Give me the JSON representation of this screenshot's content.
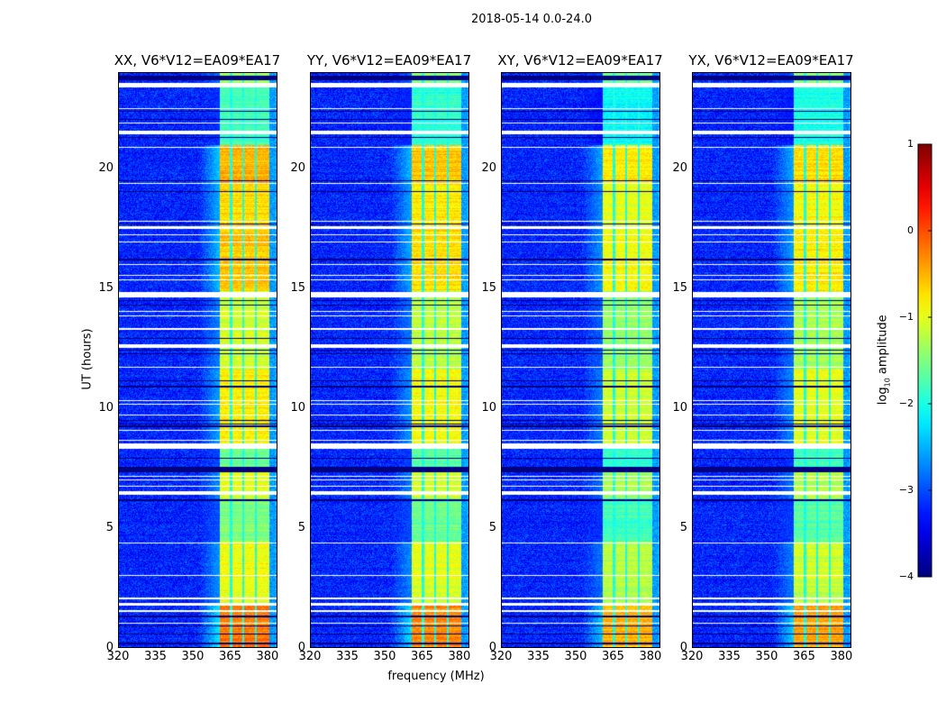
{
  "chart_data": {
    "type": "heatmap",
    "title": "2018-05-14 0.0-24.0",
    "xlabel": "frequency (MHz)",
    "ylabel": "UT (hours)",
    "xlim": [
      320,
      384
    ],
    "ylim": [
      0,
      24
    ],
    "xticks": [
      320,
      335,
      350,
      365,
      380
    ],
    "yticks": [
      0,
      5,
      10,
      15,
      20
    ],
    "panels": [
      {
        "title": "XX, V6*V12=EA09*EA17",
        "level_offset": 0.0
      },
      {
        "title": "YY, V6*V12=EA09*EA17",
        "level_offset": -0.1
      },
      {
        "title": "XY, V6*V12=EA09*EA17",
        "level_offset": -0.3
      },
      {
        "title": "YX, V6*V12=EA09*EA17",
        "level_offset": -0.2
      }
    ],
    "background_level": -3.2,
    "band": {
      "start_mhz": 361,
      "end_mhz": 381,
      "gaps_mhz": [
        365.5,
        370.5,
        375.5
      ],
      "gap_level": -2.0
    },
    "band_levels": [
      [
        0.0,
        1.85,
        -0.2
      ],
      [
        1.85,
        2.6,
        -1.0
      ],
      [
        2.6,
        4.4,
        -0.9
      ],
      [
        4.4,
        6.2,
        -1.5
      ],
      [
        6.2,
        7.3,
        -1.0
      ],
      [
        7.3,
        8.3,
        -1.6
      ],
      [
        8.3,
        9.5,
        -0.8
      ],
      [
        9.5,
        11.6,
        -0.8
      ],
      [
        11.6,
        14.9,
        -1.1
      ],
      [
        14.9,
        17.6,
        -0.6
      ],
      [
        17.6,
        19.4,
        -0.7
      ],
      [
        19.4,
        21.0,
        -0.5
      ],
      [
        21.0,
        23.4,
        -1.8
      ],
      [
        23.4,
        24.0,
        -1.3
      ]
    ],
    "flagged_white": [
      [
        0.98,
        1.03
      ],
      [
        1.48,
        1.53
      ],
      [
        1.72,
        1.84
      ],
      [
        2.0,
        2.06
      ],
      [
        2.97,
        3.03
      ],
      [
        4.33,
        4.38
      ],
      [
        6.35,
        6.53
      ],
      [
        6.7,
        6.75
      ],
      [
        6.96,
        7.0
      ],
      [
        7.11,
        7.15
      ],
      [
        8.3,
        8.5
      ],
      [
        8.62,
        8.66
      ],
      [
        9.03,
        9.07
      ],
      [
        9.68,
        9.72
      ],
      [
        10.13,
        10.17
      ],
      [
        10.28,
        10.32
      ],
      [
        11.68,
        11.72
      ],
      [
        12.5,
        12.65
      ],
      [
        13.28,
        13.32
      ],
      [
        13.84,
        13.88
      ],
      [
        14.03,
        14.07
      ],
      [
        14.6,
        14.85
      ],
      [
        15.33,
        15.37
      ],
      [
        15.53,
        15.57
      ],
      [
        15.98,
        16.02
      ],
      [
        16.93,
        16.97
      ],
      [
        17.23,
        17.27
      ],
      [
        17.5,
        17.6
      ],
      [
        17.78,
        17.83
      ],
      [
        19.38,
        19.42
      ],
      [
        20.88,
        20.92
      ],
      [
        21.45,
        21.6
      ],
      [
        21.88,
        21.92
      ],
      [
        22.48,
        22.52
      ],
      [
        23.4,
        23.6
      ]
    ],
    "flagged_black": [
      [
        0.13,
        0.17
      ],
      [
        0.51,
        0.55
      ],
      [
        0.88,
        0.92
      ],
      [
        1.26,
        1.3
      ],
      [
        6.12,
        6.18
      ],
      [
        7.3,
        7.55
      ],
      [
        7.88,
        7.92
      ],
      [
        9.2,
        9.25
      ],
      [
        9.3,
        9.35
      ],
      [
        9.45,
        9.5
      ],
      [
        10.84,
        10.88
      ],
      [
        10.9,
        10.94
      ],
      [
        11.13,
        11.17
      ],
      [
        12.23,
        12.27
      ],
      [
        12.38,
        12.42
      ],
      [
        12.88,
        12.92
      ],
      [
        14.28,
        14.32
      ],
      [
        14.48,
        14.52
      ],
      [
        16.18,
        16.22
      ],
      [
        17.68,
        17.72
      ],
      [
        19.03,
        19.07
      ],
      [
        19.48,
        19.52
      ],
      [
        21.28,
        21.32
      ],
      [
        22.03,
        22.07
      ],
      [
        22.38,
        22.42
      ],
      [
        23.7,
        23.9
      ]
    ],
    "colorbar": {
      "label_main": "log",
      "label_sub": "10",
      "label_rest": " amplitude",
      "range": [
        -4,
        1
      ],
      "ticks": [
        -4,
        -3,
        -2,
        -1,
        0,
        1
      ],
      "tick_labels": [
        "−4",
        "−3",
        "−2",
        "−1",
        "0",
        "1"
      ]
    }
  }
}
